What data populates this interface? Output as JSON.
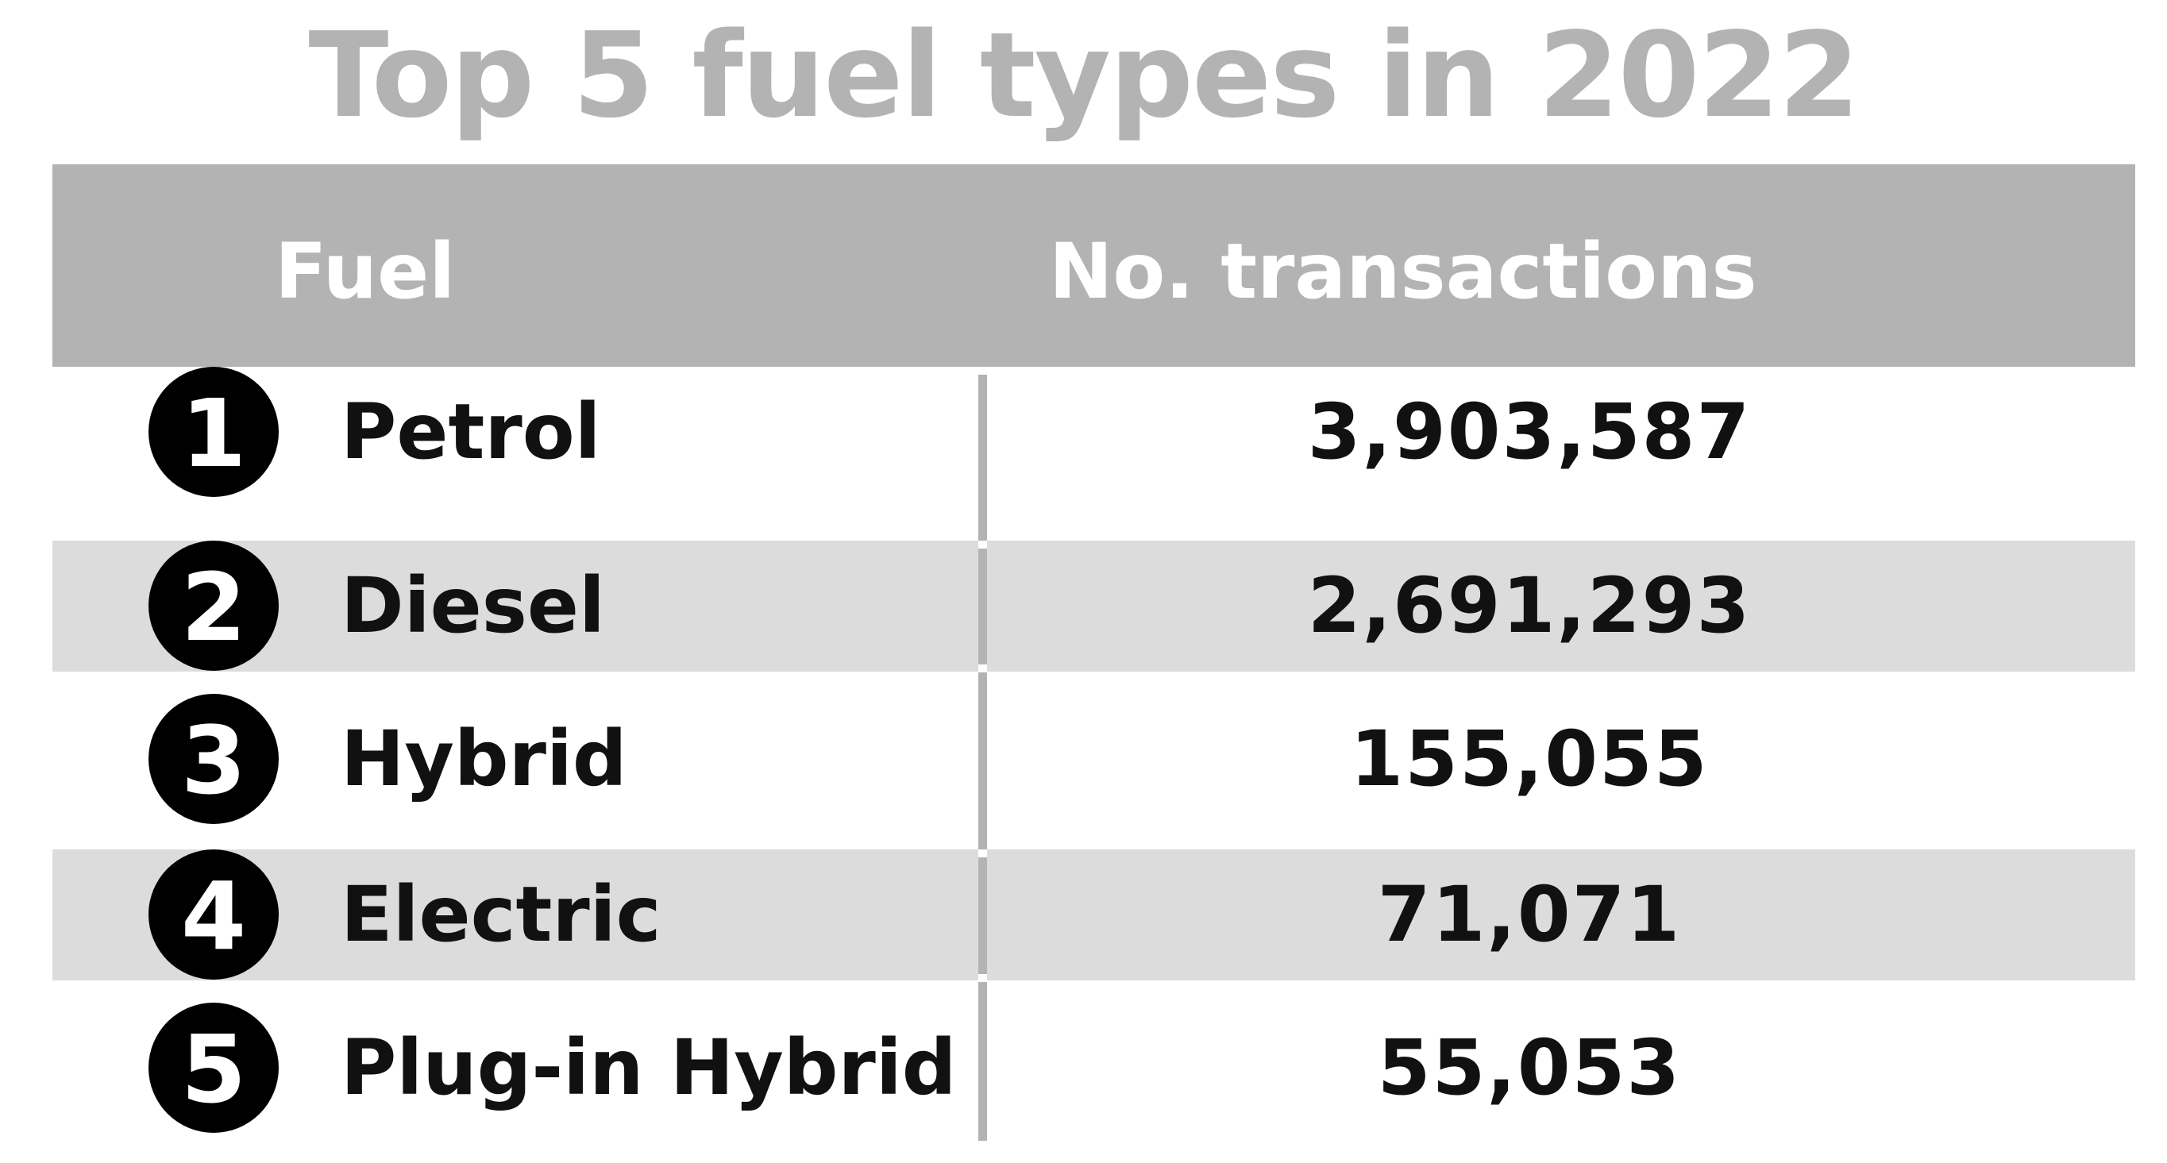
{
  "chart_data": {
    "type": "table",
    "title": "Top 5 fuel types in 2022",
    "columns": [
      "Fuel",
      "No. transactions"
    ],
    "rows": [
      {
        "rank": "1",
        "fuel": "Petrol",
        "transactions": "3,903,587"
      },
      {
        "rank": "2",
        "fuel": "Diesel",
        "transactions": "2,691,293"
      },
      {
        "rank": "3",
        "fuel": "Hybrid",
        "transactions": "155,055"
      },
      {
        "rank": "4",
        "fuel": "Electric",
        "transactions": "71,071"
      },
      {
        "rank": "5",
        "fuel": "Plug-in Hybrid",
        "transactions": "55,053"
      }
    ]
  },
  "colors": {
    "header_background": "#b3b3b3",
    "header_text": "#ffffff",
    "title_text": "#b3b3b3",
    "shaded_row": "#dcdcdc",
    "rank_badge": "#000000",
    "body_text": "#111111"
  }
}
